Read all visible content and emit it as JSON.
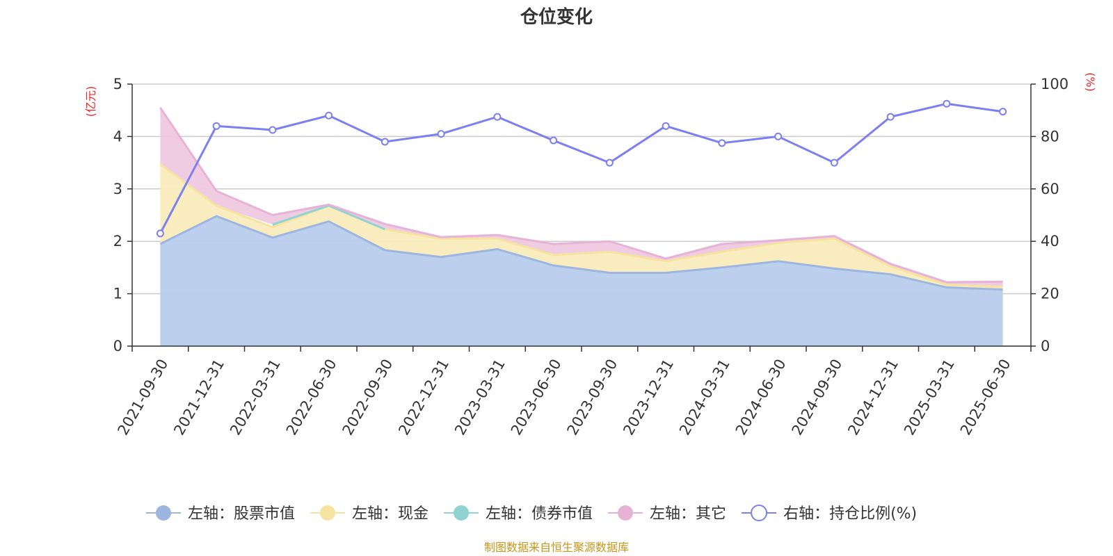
{
  "chart_data": {
    "type": "area",
    "title": "仓位变化",
    "source_note": "制图数据来自恒生聚源数据库",
    "categories": [
      "2021-09-30",
      "2021-12-31",
      "2022-03-31",
      "2022-06-30",
      "2022-09-30",
      "2022-12-31",
      "2023-03-31",
      "2023-06-30",
      "2023-09-30",
      "2023-12-31",
      "2024-03-31",
      "2024-06-30",
      "2024-09-30",
      "2024-12-31",
      "2025-03-31",
      "2025-06-30"
    ],
    "left_axis": {
      "unit": "(亿元)",
      "ylim": [
        0,
        5
      ],
      "ticks": [
        "0",
        "1",
        "2",
        "3",
        "4",
        "5"
      ]
    },
    "right_axis": {
      "unit": "(%)",
      "ylim": [
        0,
        100
      ],
      "ticks": [
        "0",
        "20",
        "40",
        "60",
        "80",
        "100"
      ]
    },
    "grid": true,
    "legend_position": "bottom",
    "stacked_series": [
      {
        "name": "左轴：股票市值",
        "color": "#9db6e0",
        "fill": "#b8cceb",
        "values": [
          1.95,
          2.48,
          2.07,
          2.38,
          1.83,
          1.7,
          1.85,
          1.54,
          1.4,
          1.4,
          1.5,
          1.62,
          1.48,
          1.37,
          1.12,
          1.08
        ]
      },
      {
        "name": "左轴：现金",
        "color": "#f7e3a0",
        "fill": "#f9ecbc",
        "values": [
          1.52,
          0.2,
          0.2,
          0.3,
          0.4,
          0.35,
          0.2,
          0.2,
          0.4,
          0.22,
          0.3,
          0.35,
          0.57,
          0.15,
          0.05,
          0.05
        ]
      },
      {
        "name": "左轴：债券市值",
        "color": "#8fd4d2",
        "fill": "#a8dedc",
        "values": [
          null,
          null,
          0.05,
          0.0,
          0.0,
          null,
          null,
          null,
          null,
          null,
          null,
          null,
          null,
          null,
          null,
          null
        ]
      },
      {
        "name": "左轴：其它",
        "color": "#e6b3d6",
        "fill": "#efc9e2",
        "values": [
          1.08,
          0.28,
          0.18,
          0.02,
          0.1,
          0.03,
          0.07,
          0.21,
          0.2,
          0.05,
          0.15,
          0.05,
          0.05,
          0.05,
          0.05,
          0.1
        ]
      }
    ],
    "line_series": {
      "name": "右轴：持仓比例(%)",
      "color": "#7b7ff0",
      "axis": "right",
      "values": [
        43,
        84,
        82.5,
        88,
        78,
        81,
        87.5,
        78.5,
        70,
        84,
        77.5,
        80,
        70,
        87.5,
        92.5,
        89.5
      ]
    }
  }
}
